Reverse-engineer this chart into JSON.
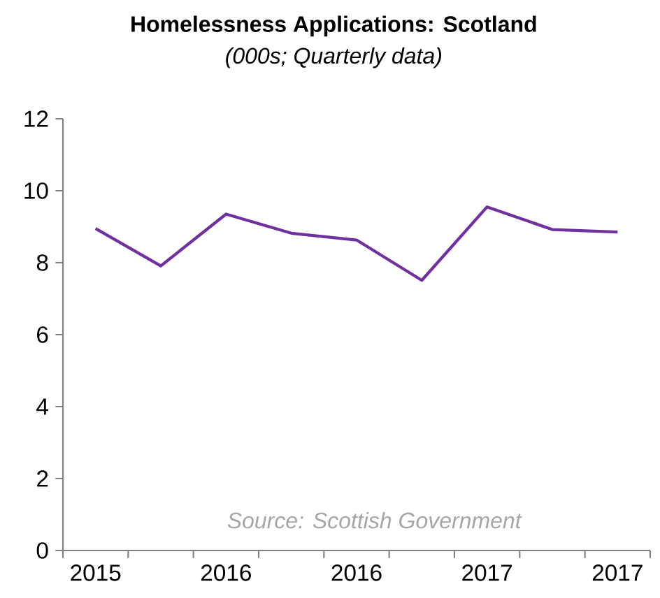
{
  "chart_data": {
    "type": "line",
    "title": "Homelessness Applications: Scotland",
    "subtitle": "(000s; Quarterly data)",
    "categories": [
      "2015",
      null,
      "2016",
      null,
      "2016",
      null,
      "2017",
      null,
      "2017"
    ],
    "series": [
      {
        "color": "#7030a0",
        "values": [
          8.95,
          7.91,
          9.35,
          8.82,
          8.63,
          7.51,
          9.55,
          8.92,
          8.85
        ]
      }
    ],
    "ylim": [
      0,
      12
    ],
    "yticks": [
      0,
      2,
      4,
      6,
      8,
      10,
      12
    ],
    "annotations": [
      "Source: Scottish Government"
    ]
  }
}
